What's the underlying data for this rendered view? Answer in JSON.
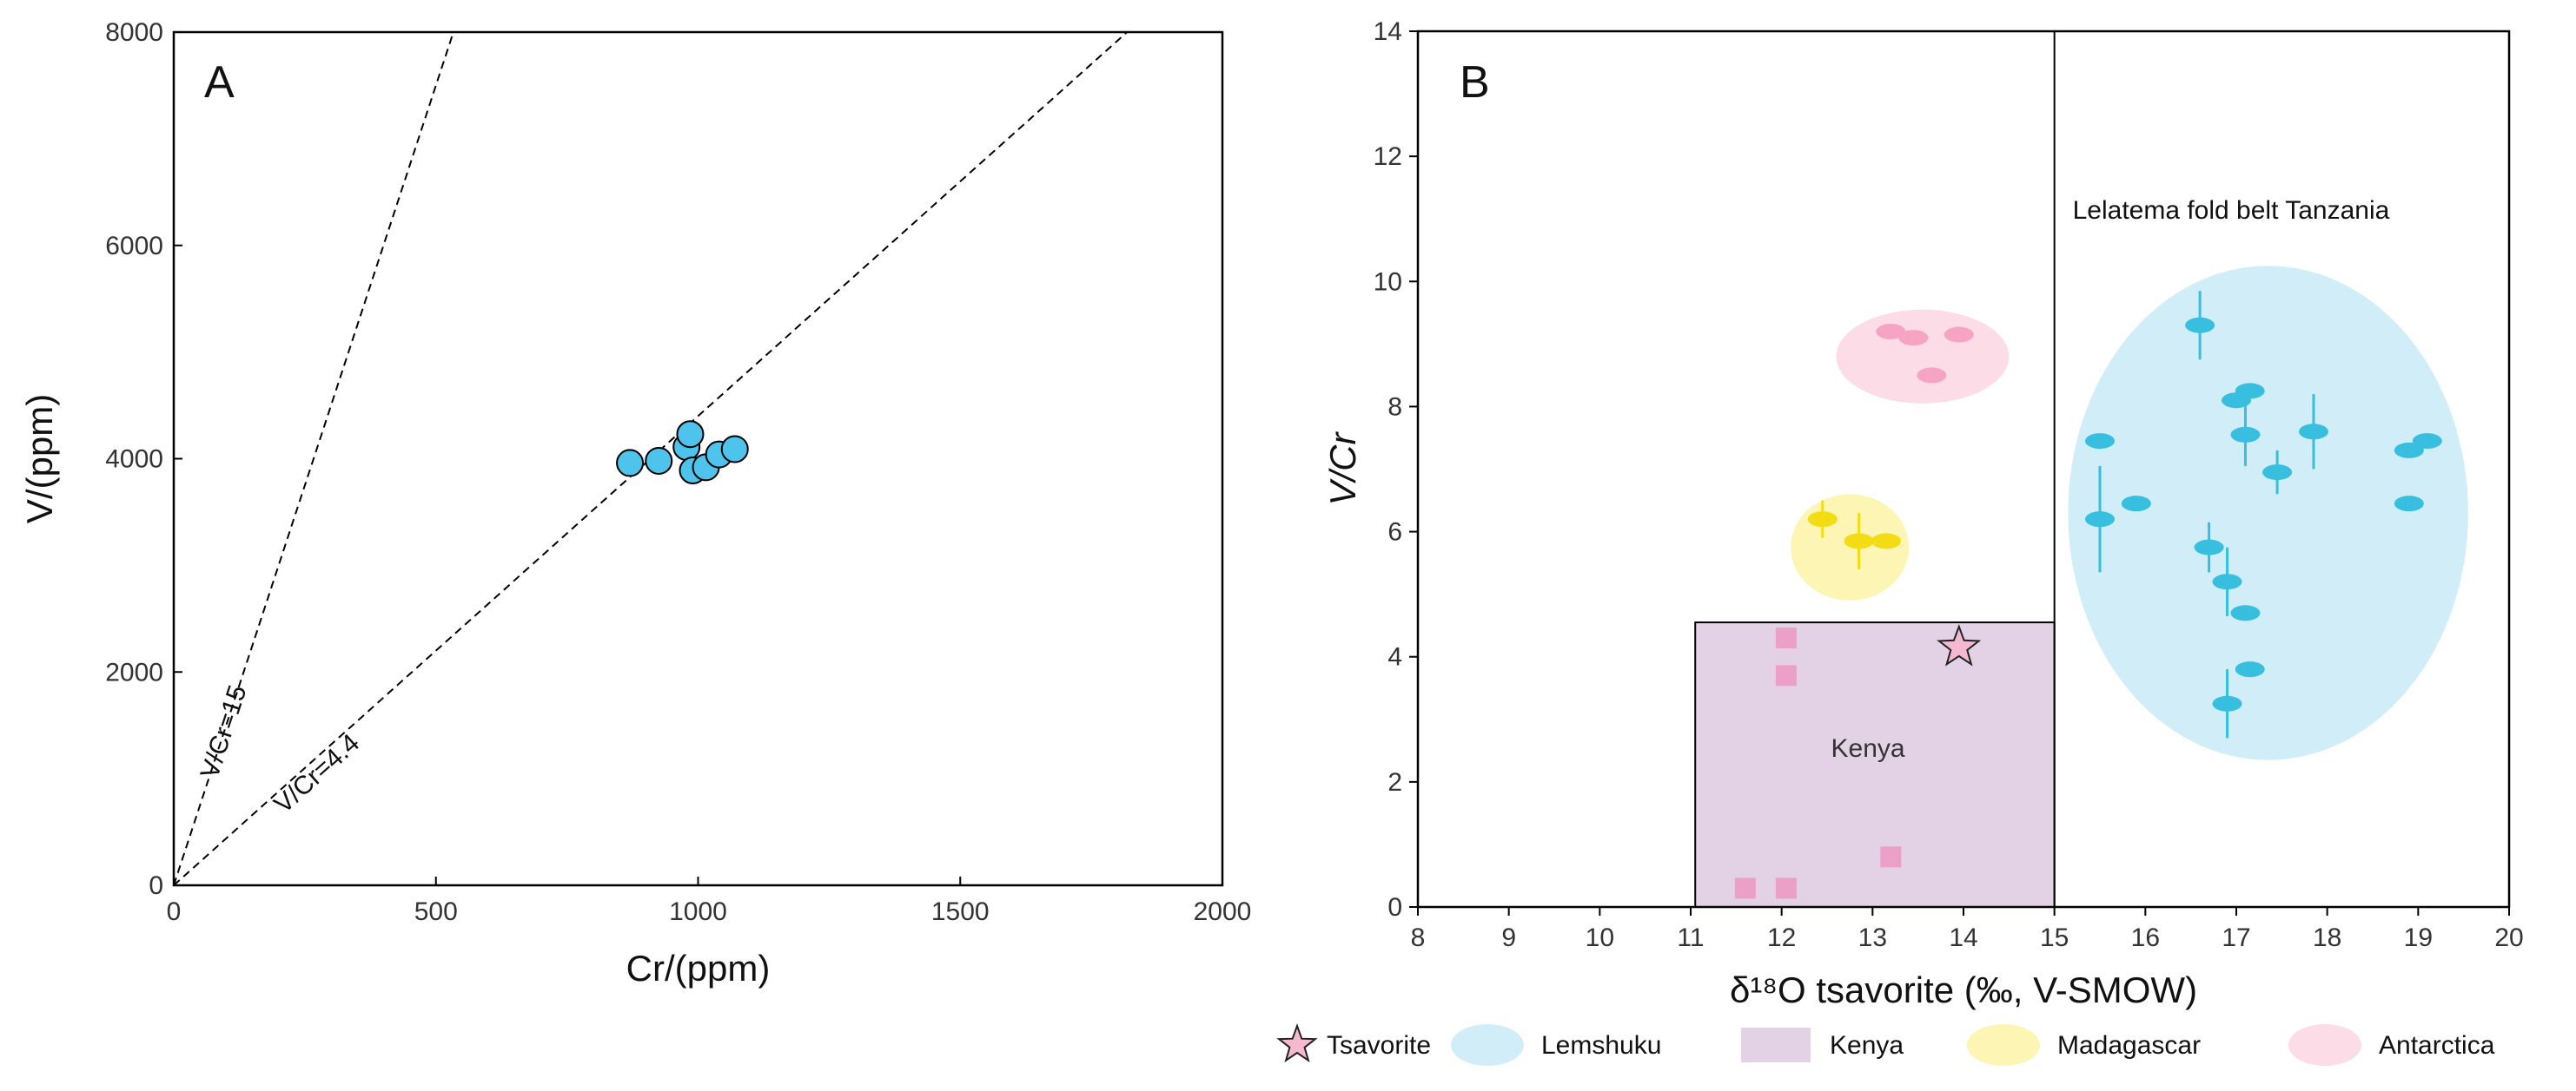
{
  "chart_data": [
    {
      "panel": "A",
      "type": "scatter",
      "xlabel": "Cr/(ppm)",
      "ylabel": "V/(ppm)",
      "xlim": [
        0,
        2000
      ],
      "ylim": [
        0,
        8000
      ],
      "xticks": [
        0,
        500,
        1000,
        1500,
        2000
      ],
      "yticks": [
        0,
        2000,
        4000,
        6000,
        8000
      ],
      "grid": false,
      "marker_color": "#4ec3ec",
      "points": [
        {
          "x": 870,
          "y": 3960
        },
        {
          "x": 925,
          "y": 3980
        },
        {
          "x": 978,
          "y": 4110
        },
        {
          "x": 985,
          "y": 4230
        },
        {
          "x": 990,
          "y": 3890
        },
        {
          "x": 1015,
          "y": 3920
        },
        {
          "x": 1040,
          "y": 4040
        },
        {
          "x": 1070,
          "y": 4090
        }
      ],
      "reference_lines": [
        {
          "label": "V/Cr=15",
          "slope": 15
        },
        {
          "label": "V/Cr=4.4",
          "slope": 4.4
        }
      ]
    },
    {
      "panel": "B",
      "type": "scatter",
      "xlabel": "δ¹⁸O tsavorite (‰, V-SMOW)",
      "ylabel": "V/Cr",
      "xlim": [
        8,
        20
      ],
      "ylim": [
        0,
        14
      ],
      "xticks": [
        8,
        9,
        10,
        11,
        12,
        13,
        14,
        15,
        16,
        17,
        18,
        19,
        20
      ],
      "yticks": [
        0,
        2,
        4,
        6,
        8,
        10,
        12,
        14
      ],
      "grid": false,
      "divider_x": 15,
      "divider_label": "Lelatema fold belt Tanzania",
      "regions": {
        "kenya": {
          "label": "Kenya",
          "x0": 11.05,
          "x1": 15.0,
          "y0": 0,
          "y1": 4.55,
          "color": "#e3d2e6"
        },
        "lemshuku": {
          "cx": 17.35,
          "cy": 6.3,
          "rx": 2.2,
          "ry": 3.95,
          "color": "#d1eef8"
        },
        "madagascar": {
          "cx": 12.75,
          "cy": 5.75,
          "rx": 0.65,
          "ry": 0.85,
          "color": "#fdf5b4"
        },
        "antarctica": {
          "cx": 13.55,
          "cy": 8.8,
          "rx": 0.95,
          "ry": 0.75,
          "color": "#fcdce6"
        }
      },
      "series": [
        {
          "name": "Lemshuku",
          "color": "#38bedf",
          "points": [
            {
              "x": 15.5,
              "y": 7.45
            },
            {
              "x": 15.5,
              "y": 6.2,
              "y_err": 0.85
            },
            {
              "x": 15.9,
              "y": 6.45
            },
            {
              "x": 16.6,
              "y": 9.3,
              "y_err": 0.55
            },
            {
              "x": 16.7,
              "y": 5.75,
              "y_err": 0.4
            },
            {
              "x": 16.9,
              "y": 5.2,
              "y_err": 0.55
            },
            {
              "x": 16.9,
              "y": 3.25,
              "y_err": 0.55
            },
            {
              "x": 17.0,
              "y": 8.1
            },
            {
              "x": 17.1,
              "y": 7.55,
              "y_err": 0.5
            },
            {
              "x": 17.1,
              "y": 4.7
            },
            {
              "x": 17.15,
              "y": 8.25
            },
            {
              "x": 17.15,
              "y": 3.8
            },
            {
              "x": 17.45,
              "y": 6.95,
              "y_err": 0.35
            },
            {
              "x": 17.85,
              "y": 7.6,
              "y_err": 0.6
            },
            {
              "x": 18.9,
              "y": 7.3
            },
            {
              "x": 18.9,
              "y": 6.45
            },
            {
              "x": 19.1,
              "y": 7.45
            }
          ]
        },
        {
          "name": "Kenya",
          "color": "#ec9fc7",
          "points": [
            {
              "x": 11.6,
              "y": 0.3
            },
            {
              "x": 12.05,
              "y": 0.3
            },
            {
              "x": 12.05,
              "y": 3.7
            },
            {
              "x": 12.05,
              "y": 4.3
            },
            {
              "x": 13.2,
              "y": 0.8
            }
          ]
        },
        {
          "name": "Madagascar",
          "color": "#f3dc14",
          "points": [
            {
              "x": 12.45,
              "y": 6.2,
              "y_err": 0.3
            },
            {
              "x": 12.85,
              "y": 5.85,
              "y_err": 0.45
            },
            {
              "x": 13.15,
              "y": 5.85
            }
          ]
        },
        {
          "name": "Antarctica",
          "color": "#f7a3c2",
          "points": [
            {
              "x": 13.2,
              "y": 9.2
            },
            {
              "x": 13.45,
              "y": 9.1
            },
            {
              "x": 13.65,
              "y": 8.5
            },
            {
              "x": 13.95,
              "y": 9.15
            }
          ]
        },
        {
          "name": "Tsavorite",
          "color": "#f4b8cf",
          "marker": "star",
          "points": [
            {
              "x": 13.95,
              "y": 4.15
            }
          ]
        }
      ],
      "legend": {
        "position": "bottom",
        "items": [
          {
            "label": "Tsavorite",
            "marker": "star",
            "color": "#f4b8cf"
          },
          {
            "label": "Lemshuku",
            "marker": "ellipse",
            "color": "#d1eef8"
          },
          {
            "label": "Kenya",
            "marker": "rect",
            "color": "#e3d2e6"
          },
          {
            "label": "Madagascar",
            "marker": "ellipse",
            "color": "#fdf5b4"
          },
          {
            "label": "Antarctica",
            "marker": "ellipse",
            "color": "#fcdce6"
          }
        ]
      }
    }
  ]
}
